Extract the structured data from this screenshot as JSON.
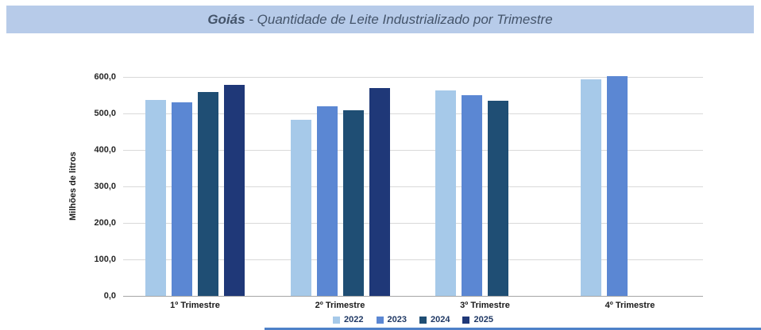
{
  "title": {
    "bold": "Goiás",
    "rest": " - Quantidade de Leite Industrializado por Trimestre"
  },
  "colors": {
    "banner_bg": "#B7CBE9",
    "title_text": "#44546A",
    "gridline": "#D9D9D9",
    "zero_axis": "#A6A6A6",
    "tick_text": "#262626",
    "legend_text": "#1F3864",
    "bottom_rule": "#4E81C8"
  },
  "chart_data": {
    "type": "bar",
    "title": "Goiás - Quantidade de Leite Industrializado por Trimestre",
    "categories": [
      "1º Trimestre",
      "2º Trimestre",
      "3º Trimestre",
      "4º Trimestre"
    ],
    "series": [
      {
        "name": "2022",
        "color": "#A6C9E9",
        "values": [
          537,
          482,
          562,
          593
        ]
      },
      {
        "name": "2023",
        "color": "#5B87D3",
        "values": [
          531,
          519,
          551,
          603
        ]
      },
      {
        "name": "2024",
        "color": "#1F4E74",
        "values": [
          559,
          509,
          535,
          null
        ]
      },
      {
        "name": "2025",
        "color": "#1F3878",
        "values": [
          578,
          570,
          null,
          null
        ]
      }
    ],
    "ylabel": "Milhões de litros",
    "xlabel": "",
    "ylim": [
      0,
      600
    ],
    "yticks": [
      {
        "value": 0,
        "label": "0,0"
      },
      {
        "value": 100,
        "label": "100,0"
      },
      {
        "value": 200,
        "label": "200,0"
      },
      {
        "value": 300,
        "label": "300,0"
      },
      {
        "value": 400,
        "label": "400,0"
      },
      {
        "value": 500,
        "label": "500,0"
      },
      {
        "value": 600,
        "label": "600,0"
      }
    ],
    "grid": true,
    "legend_position": "bottom"
  }
}
